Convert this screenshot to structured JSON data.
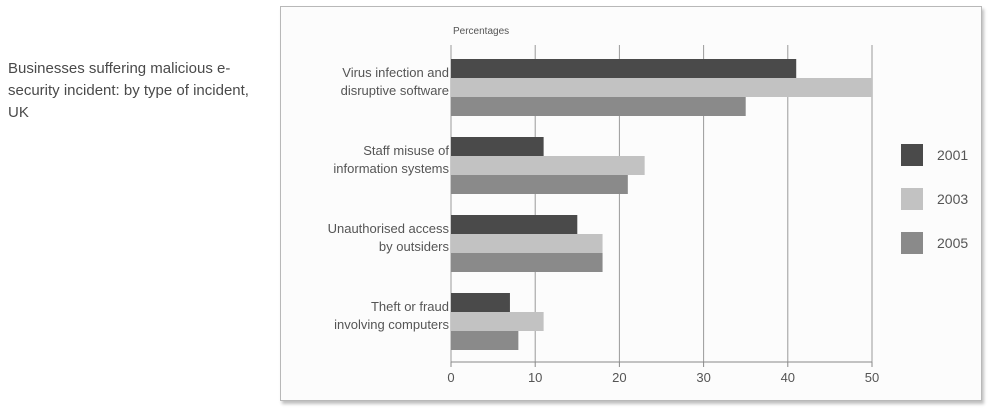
{
  "caption": "Businesses suffering malicious e-security incident: by type of incident, UK",
  "chart_data": {
    "type": "bar",
    "orientation": "horizontal",
    "title": "Businesses suffering malicious e-security incident: by type of incident, UK",
    "xlabel": "Percentages",
    "xlim": [
      0,
      50
    ],
    "xticks": [
      0,
      10,
      20,
      30,
      40,
      50
    ],
    "grid": true,
    "legend_position": "right",
    "categories": [
      [
        "Virus infection and",
        "disruptive software"
      ],
      [
        "Staff misuse of",
        "information systems"
      ],
      [
        "Unauthorised access",
        "by outsiders"
      ],
      [
        "Theft or fraud",
        "involving computers"
      ]
    ],
    "series": [
      {
        "name": "2001",
        "color": "#4a4a4a",
        "values": [
          41,
          11,
          15,
          7
        ]
      },
      {
        "name": "2003",
        "color": "#c2c2c2",
        "values": [
          50,
          23,
          18,
          11
        ]
      },
      {
        "name": "2005",
        "color": "#8a8a8a",
        "values": [
          35,
          21,
          18,
          8
        ]
      }
    ]
  }
}
